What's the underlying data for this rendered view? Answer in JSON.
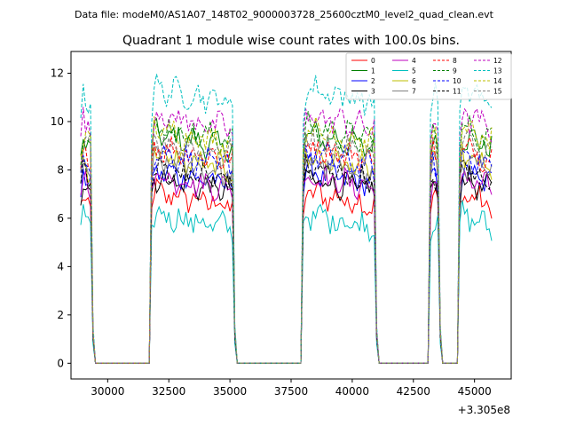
{
  "chart_data": {
    "type": "line",
    "suptitle": "Data file: modeM0/AS1A07_148T02_9000003728_25600cztM0_level2_quad_clean.evt",
    "title": "Quadrant 1 module wise count rates with 100.0s bins.",
    "xlabel": "",
    "ylabel": "",
    "x_offset_label": "+3.305e8",
    "xlim": [
      28500,
      46500
    ],
    "ylim": [
      -0.65,
      12.9
    ],
    "xticks": [
      30000,
      32500,
      35000,
      37500,
      40000,
      42500,
      45000
    ],
    "xtick_labels": [
      "30000",
      "32500",
      "35000",
      "37500",
      "40000",
      "42500",
      "45000"
    ],
    "yticks": [
      0,
      2,
      4,
      6,
      8,
      10,
      12
    ],
    "ytick_labels": [
      "0",
      "2",
      "4",
      "6",
      "8",
      "10",
      "12"
    ],
    "grid": false,
    "legend_position": "top-right",
    "segments": [
      {
        "start": 28900,
        "end": 29300,
        "rise_end": 29000
      },
      {
        "start": 31750,
        "end": 35100,
        "rise_end": 31900
      },
      {
        "start": 38000,
        "end": 40950,
        "rise_end": 38100
      },
      {
        "start": 43200,
        "end": 43500,
        "rise_end": 43300
      },
      {
        "start": 44400,
        "end": 45700,
        "rise_end": 44500
      }
    ],
    "off_level": 0,
    "series": [
      {
        "name": "0",
        "color": "#ff0000",
        "dash": "solid",
        "level": 6.3
      },
      {
        "name": "1",
        "color": "#008000",
        "dash": "solid",
        "level": 8.7
      },
      {
        "name": "2",
        "color": "#0000ff",
        "dash": "solid",
        "level": 7.2
      },
      {
        "name": "3",
        "color": "#000000",
        "dash": "solid",
        "level": 6.9
      },
      {
        "name": "4",
        "color": "#bf00bf",
        "dash": "solid",
        "level": 7.0
      },
      {
        "name": "5",
        "color": "#00bfbf",
        "dash": "solid",
        "level": 5.4
      },
      {
        "name": "6",
        "color": "#bfbf00",
        "dash": "solid",
        "level": 7.8
      },
      {
        "name": "7",
        "color": "#808080",
        "dash": "solid",
        "level": 7.6
      },
      {
        "name": "8",
        "color": "#ff0000",
        "dash": "dashed",
        "level": 8.2
      },
      {
        "name": "9",
        "color": "#008000",
        "dash": "dashed",
        "level": 9.0
      },
      {
        "name": "10",
        "color": "#0000ff",
        "dash": "dashed",
        "level": 7.9
      },
      {
        "name": "11",
        "color": "#000000",
        "dash": "dashed",
        "level": 7.3
      },
      {
        "name": "12",
        "color": "#bf00bf",
        "dash": "dashed",
        "level": 9.5
      },
      {
        "name": "13",
        "color": "#00bfbf",
        "dash": "dashed",
        "level": 10.6
      },
      {
        "name": "14",
        "color": "#bfbf00",
        "dash": "dashed",
        "level": 8.9
      },
      {
        "name": "15",
        "color": "#808080",
        "dash": "dashed",
        "level": 8.4
      }
    ]
  }
}
